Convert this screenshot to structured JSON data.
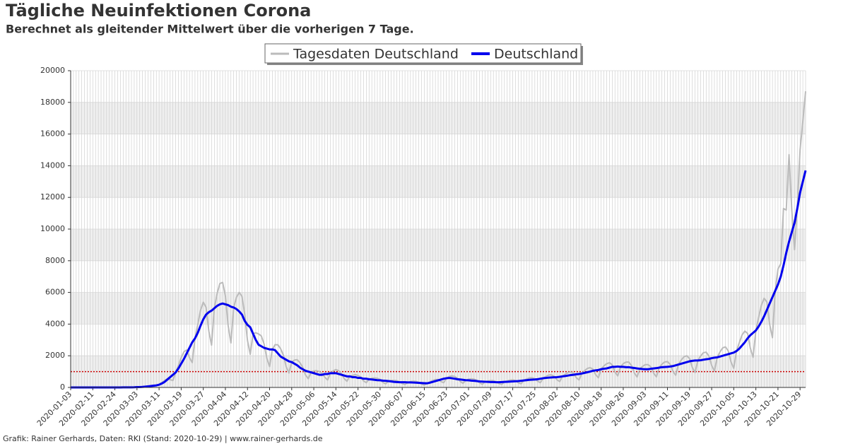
{
  "chart_data": {
    "type": "line",
    "title": "Tägliche Neuinfektionen Corona",
    "subtitle": "Berechnet als gleitender Mittelwert über die vorherigen 7 Tage.",
    "footer": "Grafik: Rainer Gerhards, Daten: RKI (Stand: 2020-10-29) | www.rainer-gerhards.de",
    "categories": [
      "2020-01-03",
      null,
      null,
      null,
      null,
      null,
      null,
      null,
      "2020-02-11",
      null,
      null,
      null,
      null,
      null,
      null,
      null,
      "2020-02-24",
      null,
      null,
      null,
      null,
      null,
      null,
      null,
      "2020-03-03",
      null,
      null,
      null,
      null,
      null,
      null,
      null,
      "2020-03-11",
      null,
      null,
      null,
      null,
      null,
      null,
      null,
      "2020-03-19",
      null,
      null,
      null,
      null,
      null,
      null,
      null,
      "2020-03-27",
      null,
      null,
      null,
      null,
      null,
      null,
      null,
      "2020-04-04",
      null,
      null,
      null,
      null,
      null,
      null,
      null,
      "2020-04-12",
      null,
      null,
      null,
      null,
      null,
      null,
      null,
      "2020-04-20",
      null,
      null,
      null,
      null,
      null,
      null,
      null,
      "2020-04-28",
      null,
      null,
      null,
      null,
      null,
      null,
      null,
      "2020-05-06",
      null,
      null,
      null,
      null,
      null,
      null,
      null,
      "2020-05-14",
      null,
      null,
      null,
      null,
      null,
      null,
      null,
      "2020-05-22",
      null,
      null,
      null,
      null,
      null,
      null,
      null,
      "2020-05-30",
      null,
      null,
      null,
      null,
      null,
      null,
      null,
      "2020-06-07",
      null,
      null,
      null,
      null,
      null,
      null,
      null,
      "2020-06-15",
      null,
      null,
      null,
      null,
      null,
      null,
      null,
      "2020-06-23",
      null,
      null,
      null,
      null,
      null,
      null,
      null,
      "2020-07-01",
      null,
      null,
      null,
      null,
      null,
      null,
      null,
      "2020-07-09",
      null,
      null,
      null,
      null,
      null,
      null,
      null,
      "2020-07-17",
      null,
      null,
      null,
      null,
      null,
      null,
      null,
      "2020-07-25",
      null,
      null,
      null,
      null,
      null,
      null,
      null,
      "2020-08-02",
      null,
      null,
      null,
      null,
      null,
      null,
      null,
      "2020-08-10",
      null,
      null,
      null,
      null,
      null,
      null,
      null,
      "2020-08-18",
      null,
      null,
      null,
      null,
      null,
      null,
      null,
      "2020-08-26",
      null,
      null,
      null,
      null,
      null,
      null,
      null,
      "2020-09-03",
      null,
      null,
      null,
      null,
      null,
      null,
      null,
      "2020-09-11",
      null,
      null,
      null,
      null,
      null,
      null,
      null,
      "2020-09-19",
      null,
      null,
      null,
      null,
      null,
      null,
      null,
      "2020-09-27",
      null,
      null,
      null,
      null,
      null,
      null,
      null,
      "2020-10-05",
      null,
      null,
      null,
      null,
      null,
      null,
      null,
      "2020-10-13",
      null,
      null,
      null,
      null,
      null,
      null,
      null,
      "2020-10-21",
      null,
      null,
      null,
      null,
      null,
      null,
      null,
      "2020-10-29",
      null,
      null
    ],
    "series": [
      {
        "name": "Tagesdaten Deutschland",
        "color": "#bbbbbb",
        "width": 2,
        "values": [
          1,
          0,
          0,
          2,
          0,
          0,
          1,
          0,
          5,
          2,
          0,
          0,
          1,
          3,
          0,
          2,
          2,
          5,
          0,
          10,
          5,
          10,
          15,
          20,
          20,
          30,
          40,
          60,
          80,
          70,
          60,
          130,
          200,
          310,
          440,
          550,
          490,
          440,
          950,
          1380,
          1880,
          2250,
          2370,
          1880,
          1570,
          3100,
          3970,
          4880,
          5380,
          5060,
          3560,
          2670,
          5000,
          5920,
          6560,
          6630,
          5780,
          3900,
          2810,
          5050,
          5690,
          6000,
          5750,
          4620,
          2960,
          2090,
          3400,
          3450,
          3380,
          3250,
          2750,
          1840,
          1320,
          2400,
          2700,
          2690,
          2440,
          2040,
          1310,
          910,
          1600,
          1730,
          1750,
          1560,
          1270,
          790,
          550,
          950,
          1040,
          1060,
          1000,
          880,
          640,
          470,
          900,
          1040,
          1130,
          1060,
          880,
          560,
          390,
          700,
          750,
          810,
          750,
          660,
          410,
          300,
          520,
          580,
          600,
          580,
          500,
          320,
          230,
          400,
          440,
          440,
          430,
          360,
          250,
          180,
          320,
          370,
          390,
          380,
          320,
          210,
          150,
          260,
          350,
          440,
          500,
          500,
          380,
          300,
          580,
          690,
          730,
          690,
          570,
          380,
          260,
          460,
          520,
          540,
          530,
          440,
          290,
          200,
          360,
          400,
          430,
          430,
          360,
          250,
          190,
          350,
          410,
          460,
          480,
          430,
          300,
          230,
          440,
          530,
          600,
          610,
          550,
          390,
          300,
          580,
          690,
          780,
          790,
          700,
          490,
          370,
          700,
          830,
          940,
          980,
          880,
          620,
          470,
          880,
          1060,
          1200,
          1250,
          1160,
          810,
          610,
          1150,
          1360,
          1500,
          1560,
          1430,
          980,
          730,
          1300,
          1500,
          1600,
          1600,
          1380,
          920,
          660,
          1180,
          1330,
          1440,
          1440,
          1300,
          900,
          670,
          1250,
          1470,
          1610,
          1630,
          1450,
          1010,
          770,
          1450,
          1730,
          1940,
          2000,
          1820,
          1260,
          940,
          1700,
          1980,
          2190,
          2230,
          1980,
          1390,
          1030,
          1900,
          2240,
          2500,
          2560,
          2310,
          1610,
          1210,
          2300,
          2820,
          3310,
          3560,
          3410,
          2480,
          1900,
          3600,
          4430,
          5190,
          5630,
          5390,
          3980,
          3140,
          6100,
          7480,
          7800,
          11300,
          11200,
          14700,
          11200,
          8700,
          11400,
          15000,
          16800,
          18700
        ]
      },
      {
        "name": "Deutschland",
        "color": "#0000ee",
        "width": 3,
        "values": [
          0,
          0,
          0,
          0,
          0,
          0,
          0,
          0,
          0,
          0,
          0,
          0,
          0,
          0,
          0,
          0,
          1,
          2,
          2,
          3,
          4,
          6,
          8,
          10,
          20,
          25,
          35,
          50,
          70,
          90,
          110,
          130,
          170,
          250,
          350,
          500,
          650,
          800,
          950,
          1200,
          1500,
          1800,
          2150,
          2500,
          2850,
          3100,
          3450,
          3900,
          4300,
          4600,
          4750,
          4850,
          5000,
          5150,
          5250,
          5300,
          5250,
          5200,
          5100,
          5050,
          4950,
          4800,
          4600,
          4200,
          3950,
          3800,
          3400,
          3000,
          2700,
          2600,
          2500,
          2450,
          2400,
          2400,
          2350,
          2150,
          1950,
          1850,
          1750,
          1650,
          1600,
          1500,
          1400,
          1250,
          1150,
          1050,
          1000,
          950,
          900,
          850,
          800,
          800,
          850,
          850,
          900,
          900,
          900,
          850,
          800,
          750,
          700,
          700,
          650,
          650,
          600,
          600,
          550,
          550,
          520,
          500,
          480,
          460,
          450,
          430,
          420,
          400,
          380,
          350,
          340,
          330,
          330,
          330,
          320,
          320,
          310,
          300,
          290,
          280,
          270,
          260,
          300,
          350,
          400,
          450,
          500,
          550,
          580,
          600,
          580,
          550,
          520,
          500,
          480,
          460,
          450,
          430,
          420,
          400,
          380,
          370,
          360,
          350,
          340,
          340,
          330,
          330,
          340,
          350,
          360,
          370,
          380,
          390,
          400,
          420,
          440,
          460,
          480,
          490,
          500,
          520,
          550,
          580,
          600,
          620,
          630,
          640,
          650,
          670,
          700,
          720,
          750,
          780,
          800,
          830,
          850,
          880,
          920,
          960,
          1000,
          1050,
          1080,
          1100,
          1150,
          1180,
          1200,
          1250,
          1300,
          1300,
          1320,
          1300,
          1300,
          1280,
          1280,
          1250,
          1230,
          1200,
          1180,
          1160,
          1150,
          1150,
          1180,
          1200,
          1220,
          1250,
          1280,
          1290,
          1300,
          1320,
          1350,
          1400,
          1450,
          1500,
          1550,
          1600,
          1650,
          1680,
          1700,
          1700,
          1720,
          1750,
          1780,
          1800,
          1850,
          1880,
          1900,
          1950,
          2000,
          2050,
          2100,
          2150,
          2200,
          2300,
          2450,
          2650,
          2850,
          3100,
          3300,
          3450,
          3600,
          3850,
          4150,
          4500,
          4900,
          5300,
          5700,
          6100,
          6500,
          7000,
          7700,
          8500,
          9200,
          9800,
          10400,
          11300,
          12300,
          13000,
          13700
        ]
      }
    ],
    "reference_line": {
      "value": 1000,
      "color": "#cc0000"
    },
    "ylim": [
      0,
      20000
    ],
    "yticks": [
      0,
      2000,
      4000,
      6000,
      8000,
      10000,
      12000,
      14000,
      16000,
      18000,
      20000
    ],
    "grid": true,
    "legend": "top"
  }
}
